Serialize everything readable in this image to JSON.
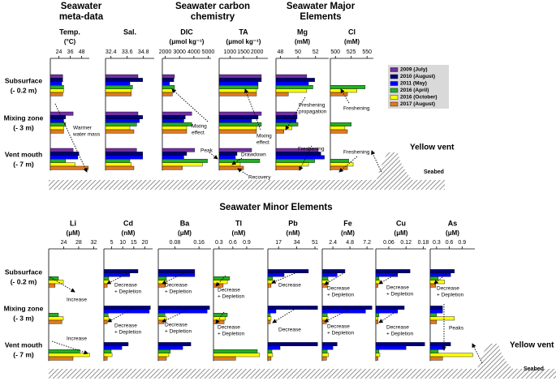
{
  "headers": [
    [
      "Seawater",
      "meta-data"
    ],
    [
      "Seawater carbon",
      "chemistry"
    ],
    [
      "Seawater Major",
      "Elements"
    ],
    [
      "Seawater Minor Elements"
    ]
  ],
  "rows": [
    [
      [
        "Subsurface",
        "(- 0.2 m)"
      ],
      [
        "Mixing zone",
        "(- 3 m)"
      ],
      [
        "Vent mouth",
        "(- 7 m)"
      ]
    ],
    [
      [
        "Subsurface",
        "(- 0.2 m)"
      ],
      [
        "Mixing zone",
        "(- 3 m)"
      ],
      [
        "Vent mouth",
        "(- 7 m)"
      ]
    ]
  ],
  "legend": [
    {
      "name": "2009 (July)",
      "color": "#7030a0"
    },
    {
      "name": "2010 (August)",
      "color": "#00007a"
    },
    {
      "name": "2011 (May)",
      "color": "#0000ff"
    },
    {
      "name": "2016 (April)",
      "color": "#22b022"
    },
    {
      "name": "2016 (October)",
      "color": "#ffff00"
    },
    {
      "name": "2017 (August)",
      "color": "#e07a20"
    }
  ],
  "annotations": [
    [
      "Warmer",
      "water mass"
    ],
    [
      "Mixing",
      "effect"
    ],
    [
      "Peak"
    ],
    [
      "Mixing",
      "effect"
    ],
    [
      "Drawdown"
    ],
    [
      "Recovery"
    ],
    [
      "Freshening",
      "propagation"
    ],
    [
      "Freshening"
    ],
    [
      "Freshening"
    ],
    [
      "Freshening"
    ],
    [
      "Increase"
    ],
    [
      "Increase"
    ],
    [
      "Decrease",
      "+ Depletion"
    ],
    [
      "Decrease",
      "+ Depletion"
    ],
    [
      "Decrease",
      "+ Depletion"
    ],
    [
      "Decrease",
      "+ Depletion"
    ],
    [
      "Decrease",
      "+ Depletion"
    ],
    [
      "Decrease",
      "+ Depletion"
    ],
    [
      "Decrease"
    ],
    [
      "Decrease"
    ],
    [
      "Decrease",
      "+ Depletion"
    ],
    [
      "Decrease",
      "+ Depletion"
    ],
    [
      "Decrease",
      "+ Depletion"
    ],
    [
      "Decrease",
      "+ Depletion"
    ],
    [
      "Decrease",
      "+ Depletion"
    ],
    [
      "Peaks"
    ]
  ],
  "vent_labels": [
    "Yellow vent",
    "Seabed",
    "Yellow vent",
    "Seabed"
  ],
  "chart_data": [
    {
      "type": "bar",
      "title": "Temp.",
      "unit": "(°C)",
      "xlim": [
        15,
        56
      ],
      "xticks": [
        24,
        36,
        48
      ],
      "values": [
        [
          28,
          28,
          27,
          29,
          29,
          28
        ],
        [
          39,
          31,
          29,
          31,
          29,
          29
        ],
        [
          39,
          45,
          44,
          31,
          41,
          55
        ]
      ]
    },
    {
      "type": "bar",
      "title": "Sal.",
      "xlim": [
        32.0,
        35.6
      ],
      "xticks": [
        32.4,
        33.6,
        34.8
      ],
      "values": [
        [
          34.4,
          34.75,
          33.8,
          34.0,
          33.9,
          33.9
        ],
        [
          34.4,
          34.75,
          34.5,
          34.3,
          33.8,
          34.1
        ],
        [
          34.3,
          34.75,
          34.75,
          33.8,
          33.9,
          34.1
        ]
      ]
    },
    {
      "type": "bar",
      "title": "DIC",
      "unit": "(μmol kg⁻¹)",
      "xlim": [
        1800,
        5200
      ],
      "xticks": [
        2000,
        3000,
        4000,
        5000
      ],
      "values": [
        [
          2650,
          2600,
          2300,
          2650,
          2500,
          2500
        ],
        [
          3850,
          3400,
          3300,
          3850,
          3500,
          3500
        ],
        [
          4050,
          3500,
          3300,
          4950,
          4600,
          3200
        ]
      ]
    },
    {
      "type": "bar",
      "title": "TA",
      "unit": "(μmol kg⁻¹)",
      "xlim": [
        600,
        2400
      ],
      "xticks": [
        1000,
        1500,
        2000
      ],
      "values": [
        [
          2160,
          2160,
          2040,
          2040,
          1980,
          1980
        ],
        [
          2160,
          2040,
          1800,
          2160,
          1980,
          1980
        ],
        [
          1800,
          1260,
          1200,
          2100,
          1380,
          1500
        ]
      ]
    },
    {
      "type": "bar",
      "title": "Mg",
      "unit": "(mM)",
      "xlim": [
        47.5,
        53.5
      ],
      "xticks": [
        48,
        50,
        52
      ],
      "values": [
        [
          51.0,
          51.9,
          51.2,
          51.7,
          51.0,
          48.9
        ],
        [
          49.9,
          49.9,
          49.8,
          50.0,
          49.3,
          48.4
        ],
        [
          52.3,
          52.6,
          53.0,
          51.9,
          51.2,
          50.3
        ]
      ]
    },
    {
      "type": "bar",
      "title": "Cl",
      "unit": "(mM)",
      "xlim": [
        492,
        560
      ],
      "xticks": [
        500,
        525,
        550
      ],
      "values": [
        [
          null,
          null,
          null,
          547,
          534,
          519
        ],
        [
          null,
          null,
          null,
          525,
          515,
          519
        ],
        [
          null,
          null,
          null,
          521,
          528,
          519
        ]
      ]
    },
    {
      "type": "bar",
      "title": "Li",
      "unit": "(μM)",
      "xlim": [
        20,
        33
      ],
      "xticks": [
        24,
        28,
        32
      ],
      "values": [
        [
          null,
          null,
          null,
          22.6,
          23.9,
          21.7
        ],
        [
          null,
          null,
          null,
          22.6,
          23.9,
          23.5
        ],
        [
          null,
          null,
          null,
          28.3,
          30.9,
          26.5
        ]
      ]
    },
    {
      "type": "bar",
      "title": "Cd",
      "unit": "(nM)",
      "xlim": [
        1.5,
        23.5
      ],
      "xticks": [
        5,
        10,
        15,
        20
      ],
      "values": [
        [
          null,
          16.9,
          13.2,
          3.7,
          3.7,
          3.0
        ],
        [
          null,
          22.5,
          22.0,
          3.4,
          3.7,
          3.0
        ],
        [
          null,
          12.5,
          9.6,
          4.8,
          5.2,
          3.0
        ]
      ]
    },
    {
      "type": "bar",
      "title": "Ba",
      "unit": "(μM)",
      "xlim": [
        0.025,
        0.2
      ],
      "xticks": [
        0.08,
        0.16
      ],
      "values": [
        [
          null,
          0.146,
          0.146,
          0.052,
          0.052,
          0.047
        ],
        [
          null,
          0.195,
          0.187,
          0.047,
          0.052,
          0.044
        ],
        [
          null,
          0.133,
          0.106,
          0.065,
          0.06,
          0.052
        ]
      ]
    },
    {
      "type": "bar",
      "title": "Tl",
      "unit": "(nM)",
      "xlim": [
        0.18,
        1.27
      ],
      "xticks": [
        0.3,
        0.6,
        0.9
      ],
      "values": [
        [
          null,
          null,
          null,
          0.53,
          0.48,
          0.39
        ],
        [
          null,
          null,
          null,
          0.48,
          0.44,
          0.41
        ],
        [
          null,
          null,
          null,
          1.13,
          1.18,
          0.66
        ]
      ]
    },
    {
      "type": "bar",
      "title": "Pb",
      "unit": "(nM)",
      "xlim": [
        7,
        54
      ],
      "xticks": [
        17,
        34,
        51
      ],
      "values": [
        [
          null,
          44.9,
          22.2,
          11.5,
          11.5,
          10.0
        ],
        [
          null,
          53.5,
          14.6,
          9.3,
          10.0,
          9.3
        ],
        [
          null,
          53.5,
          18.4,
          10.8,
          11.5,
          10.0
        ]
      ]
    },
    {
      "type": "bar",
      "title": "Fe",
      "unit": "(nM)",
      "xlim": [
        0.9,
        8.1
      ],
      "xticks": [
        2.4,
        4.8,
        7.2
      ],
      "values": [
        [
          null,
          4.1,
          3.0,
          1.7,
          1.8,
          1.6
        ],
        [
          null,
          7.9,
          7.0,
          1.6,
          1.7,
          1.5
        ],
        [
          null,
          3.0,
          2.4,
          1.6,
          1.8,
          1.5
        ]
      ]
    },
    {
      "type": "bar",
      "title": "Cu",
      "unit": "(μM)",
      "xlim": [
        0.015,
        0.19
      ],
      "xticks": [
        0.06,
        0.12,
        0.18
      ],
      "values": [
        [
          null,
          0.134,
          0.091,
          0.026,
          0.029,
          0.023
        ],
        [
          null,
          0.114,
          0.091,
          0.026,
          0.023,
          0.023
        ],
        [
          null,
          0.185,
          0.12,
          0.026,
          0.029,
          0.023
        ]
      ]
    },
    {
      "type": "bar",
      "title": "As",
      "unit": "(μM)",
      "xlim": [
        0.15,
        1.2
      ],
      "xticks": [
        0.3,
        0.6,
        0.9
      ],
      "values": [
        [
          null,
          0.72,
          0.63,
          0.34,
          0.49,
          0.28
        ],
        [
          null,
          0.44,
          0.44,
          0.3,
          0.72,
          0.3
        ],
        [
          null,
          0.63,
          0.49,
          0.34,
          1.15,
          0.44
        ]
      ]
    }
  ]
}
